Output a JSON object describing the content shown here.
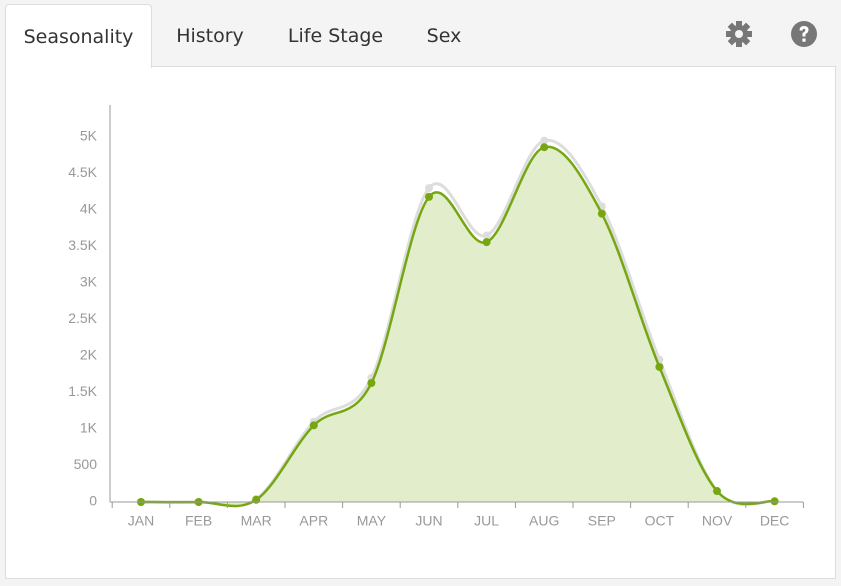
{
  "tabs": [
    "Seasonality",
    "History",
    "Life Stage",
    "Sex"
  ],
  "chart_data": {
    "type": "area",
    "categories": [
      "JAN",
      "FEB",
      "MAR",
      "APR",
      "MAY",
      "JUN",
      "JUL",
      "AUG",
      "SEP",
      "OCT",
      "NOV",
      "DEC"
    ],
    "series": [
      {
        "color": "#dddddd",
        "values": [
          0,
          0,
          40,
          1100,
          1700,
          4300,
          3650,
          4950,
          4050,
          1950,
          150,
          10
        ]
      },
      {
        "color": "#76a713",
        "values": [
          0,
          0,
          30,
          1050,
          1630,
          4180,
          3560,
          4860,
          3950,
          1850,
          150,
          10
        ]
      }
    ],
    "ylim": [
      0,
      5400
    ],
    "yticks": [
      0,
      500,
      {
        "value": 1000,
        "label": "1K"
      },
      {
        "value": 1500,
        "label": "1.5K"
      },
      {
        "value": 2000,
        "label": "2K"
      },
      {
        "value": 2500,
        "label": "2.5K"
      },
      {
        "value": 3000,
        "label": "3K"
      },
      {
        "value": 3500,
        "label": "3.5K"
      },
      {
        "value": 4000,
        "label": "4K"
      },
      {
        "value": 4500,
        "label": "4.5K"
      },
      {
        "value": 5000,
        "label": "5K"
      }
    ]
  }
}
